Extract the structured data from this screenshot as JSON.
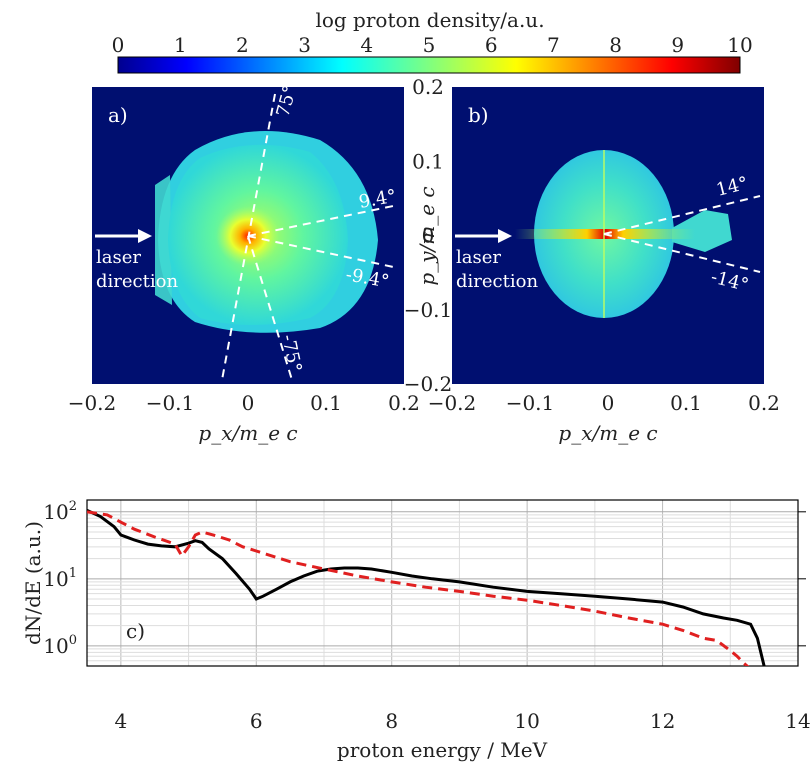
{
  "colorbar": {
    "title": "log proton density/a.u.",
    "ticks": [
      "0",
      "1",
      "2",
      "3",
      "4",
      "5",
      "6",
      "7",
      "8",
      "9",
      "10"
    ]
  },
  "chart_data": [
    {
      "type": "heatmap",
      "panel_label": "a)",
      "xlabel": "p_x/m_e c",
      "ylabel": "p_y/m_e c",
      "xlim": [
        -0.2,
        0.2
      ],
      "ylim": [
        -0.2,
        0.2
      ],
      "xticks": [
        "-0.2",
        "-0.1",
        "0",
        "0.1",
        "0.2"
      ],
      "yticks": [
        "0.2",
        "0.1",
        "0",
        "-0.1",
        "-0.2"
      ],
      "arrow_label_1": "laser",
      "arrow_label_2": "direction",
      "angle_labels": [
        "75°",
        "9.4°",
        "-9.4°",
        "-75°"
      ]
    },
    {
      "type": "heatmap",
      "panel_label": "b)",
      "xlabel": "p_x/m_e c",
      "xlim": [
        -0.2,
        0.2
      ],
      "ylim": [
        -0.2,
        0.2
      ],
      "xticks": [
        "-0.2",
        "-0.1",
        "0",
        "0.1",
        "0.2"
      ],
      "arrow_label_1": "laser",
      "arrow_label_2": "direction",
      "angle_labels": [
        "14°",
        "-14°"
      ]
    },
    {
      "type": "line",
      "panel_label": "c)",
      "xlabel": "proton energy / MeV",
      "ylabel": "dN/dE (a.u.)",
      "xlim": [
        3.5,
        14
      ],
      "ylim": [
        0.5,
        150
      ],
      "yscale": "log",
      "xticks": [
        "4",
        "6",
        "8",
        "10",
        "12",
        "14"
      ],
      "yticks": [
        "10^0",
        "10^1",
        "10^2"
      ],
      "series": [
        {
          "color": "#000000",
          "dash": "solid",
          "x": [
            3.5,
            3.7,
            3.9,
            4.0,
            4.2,
            4.4,
            4.6,
            4.8,
            5.0,
            5.1,
            5.2,
            5.3,
            5.5,
            5.7,
            5.9,
            6.0,
            6.1,
            6.3,
            6.5,
            6.7,
            6.9,
            7.1,
            7.3,
            7.5,
            7.7,
            8.0,
            8.3,
            8.6,
            9.0,
            9.5,
            10.0,
            10.5,
            11.0,
            11.5,
            12.0,
            12.3,
            12.6,
            12.9,
            13.1,
            13.3,
            13.4,
            13.5
          ],
          "y": [
            105,
            85,
            60,
            45,
            38,
            33,
            31,
            30,
            34,
            37,
            35,
            28,
            20,
            12,
            7,
            5,
            5.5,
            7,
            9,
            11,
            13,
            14,
            14.5,
            14.5,
            14,
            12.5,
            11,
            10,
            9,
            7.5,
            6.5,
            6,
            5.5,
            5,
            4.5,
            3.8,
            3,
            2.6,
            2.4,
            2.1,
            1.3,
            0.5
          ]
        },
        {
          "color": "#e02020",
          "dash": "dashed",
          "x": [
            3.5,
            3.8,
            4.0,
            4.2,
            4.5,
            4.8,
            4.9,
            5.0,
            5.1,
            5.2,
            5.4,
            5.6,
            5.8,
            6.0,
            6.5,
            7.0,
            7.5,
            8.0,
            8.5,
            9.0,
            9.5,
            10.0,
            10.5,
            11.0,
            11.5,
            12.0,
            12.3,
            12.6,
            12.8,
            13.0,
            13.1,
            13.2,
            13.3
          ],
          "y": [
            100,
            90,
            70,
            55,
            42,
            33,
            22,
            30,
            45,
            50,
            44,
            38,
            30,
            26,
            18,
            14,
            11,
            9,
            7.5,
            6.5,
            5.5,
            4.8,
            4,
            3.3,
            2.6,
            2.1,
            1.7,
            1.3,
            1.2,
            0.85,
            0.7,
            0.55,
            0.45
          ]
        }
      ]
    }
  ]
}
